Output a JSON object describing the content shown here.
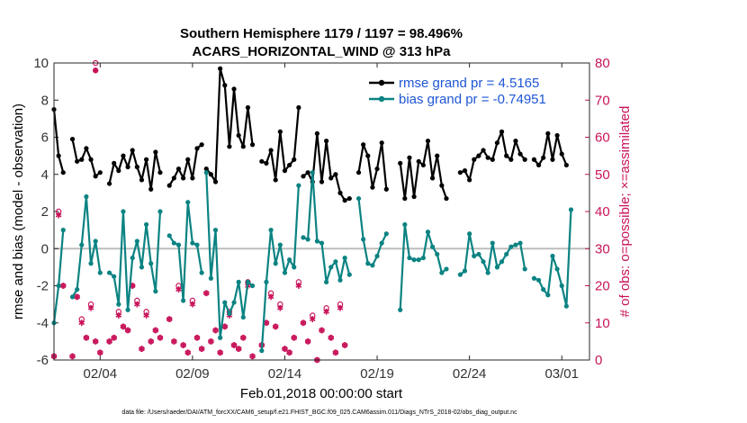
{
  "chart_data": {
    "type": "line",
    "title_line1": "Southern Hemisphere 1179 / 1197 = 98.496%",
    "title_line2": "ACARS_HORIZONTAL_WIND @ 313 hPa",
    "xlabel": "Feb.01,2018 00:00:00 start",
    "ylabel": "rmse and bias (model - observation)",
    "ylabel_right": "# of obs: o=possible; ×=assimilated",
    "footnote": "data file: /Users/raeder/DAI/ATM_forcXX/CAM6_setup/f.e21.FHIST_BGC.f09_025.CAM6assim.011/Diags_NTrS_2018-02/obs_diag_output.nc",
    "xlim": [
      1,
      30
    ],
    "ylim": [
      -6,
      10
    ],
    "ylim_right": [
      0,
      80
    ],
    "x_ticks": [
      3.5,
      8.5,
      13.5,
      18.5,
      23.5,
      28.5
    ],
    "x_tick_labels": [
      "02/04",
      "02/09",
      "02/14",
      "02/19",
      "02/24",
      "03/01"
    ],
    "y_ticks": [
      -6,
      -4,
      -2,
      0,
      2,
      4,
      6,
      8,
      10
    ],
    "y_tick_labels": [
      "-6",
      "-4",
      "-2",
      "0",
      "2",
      "4",
      "6",
      "8",
      "10"
    ],
    "y_right_ticks": [
      0,
      10,
      20,
      30,
      40,
      50,
      60,
      70,
      80
    ],
    "y_right_tick_labels": [
      "0",
      "10",
      "20",
      "30",
      "40",
      "50",
      "60",
      "70",
      "80"
    ],
    "zero_line": 0,
    "legend": [
      {
        "label": "rmse grand pr = 4.5165",
        "color": "#000000"
      },
      {
        "label": "bias grand pr = -0.74951",
        "color": "#0b8382"
      }
    ],
    "series": [
      {
        "name": "rmse",
        "color": "#000000",
        "segments": [
          [
            [
              1.0,
              7.5
            ],
            [
              1.25,
              5.0
            ],
            [
              1.5,
              4.1
            ]
          ],
          [
            [
              2.0,
              5.9
            ],
            [
              2.25,
              4.7
            ],
            [
              2.5,
              4.8
            ],
            [
              2.75,
              5.4
            ],
            [
              3.0,
              4.8
            ],
            [
              3.25,
              3.9
            ],
            [
              3.5,
              4.1
            ]
          ],
          [
            [
              4.0,
              3.5
            ],
            [
              4.25,
              4.6
            ],
            [
              4.5,
              4.2
            ],
            [
              4.75,
              5.0
            ],
            [
              5.0,
              4.4
            ],
            [
              5.25,
              5.3
            ],
            [
              5.5,
              4.4
            ],
            [
              5.75,
              3.7
            ],
            [
              6.0,
              4.8
            ],
            [
              6.25,
              3.2
            ],
            [
              6.5,
              5.2
            ],
            [
              6.75,
              4.1
            ]
          ],
          [
            [
              7.25,
              3.4
            ],
            [
              7.5,
              3.8
            ],
            [
              7.75,
              4.3
            ],
            [
              8.0,
              3.8
            ],
            [
              8.25,
              4.8
            ],
            [
              8.5,
              3.8
            ],
            [
              8.75,
              5.4
            ],
            [
              9.0,
              5.6
            ]
          ],
          [
            [
              9.25,
              4.3
            ],
            [
              9.5,
              4.0
            ],
            [
              9.75,
              3.6
            ],
            [
              10.0,
              9.7
            ],
            [
              10.25,
              8.8
            ],
            [
              10.5,
              5.5
            ],
            [
              10.75,
              8.6
            ],
            [
              11.0,
              6.1
            ],
            [
              11.25,
              5.5
            ],
            [
              11.5,
              7.6
            ],
            [
              11.75,
              5.6
            ]
          ],
          [
            [
              12.25,
              4.7
            ],
            [
              12.5,
              4.6
            ],
            [
              12.75,
              5.3
            ],
            [
              13.0,
              3.7
            ],
            [
              13.25,
              6.3
            ],
            [
              13.5,
              4.2
            ],
            [
              13.75,
              4.5
            ],
            [
              14.0,
              4.8
            ],
            [
              14.25,
              7.6
            ]
          ],
          [
            [
              14.5,
              3.9
            ],
            [
              14.75,
              4.1
            ],
            [
              15.0,
              3.6
            ],
            [
              15.25,
              6.2
            ],
            [
              15.5,
              3.6
            ],
            [
              15.75,
              5.8
            ],
            [
              16.0,
              3.8
            ],
            [
              16.25,
              4.0
            ],
            [
              16.5,
              3.0
            ],
            [
              16.75,
              2.6
            ],
            [
              17.0,
              2.7
            ]
          ],
          [
            [
              17.5,
              4.1
            ],
            [
              17.75,
              5.6
            ],
            [
              18.0,
              5.0
            ],
            [
              18.25,
              3.3
            ],
            [
              18.5,
              4.3
            ],
            [
              18.75,
              5.7
            ],
            [
              19.0,
              3.2
            ]
          ],
          [
            [
              19.75,
              4.6
            ],
            [
              20.0,
              2.7
            ],
            [
              20.25,
              4.9
            ],
            [
              20.5,
              2.8
            ],
            [
              20.75,
              4.7
            ],
            [
              21.0,
              4.5
            ],
            [
              21.25,
              5.8
            ],
            [
              21.5,
              3.8
            ],
            [
              21.75,
              5.0
            ],
            [
              22.0,
              3.4
            ],
            [
              22.25,
              2.7
            ]
          ],
          [
            [
              23.0,
              4.1
            ],
            [
              23.25,
              4.2
            ],
            [
              23.5,
              3.7
            ],
            [
              23.75,
              4.8
            ],
            [
              24.0,
              5.0
            ],
            [
              24.25,
              5.3
            ],
            [
              24.5,
              4.9
            ],
            [
              24.75,
              4.8
            ],
            [
              25.0,
              5.7
            ],
            [
              25.25,
              6.3
            ],
            [
              25.5,
              5.0
            ],
            [
              25.75,
              4.8
            ],
            [
              26.0,
              5.8
            ],
            [
              26.25,
              5.1
            ],
            [
              26.5,
              4.8
            ]
          ],
          [
            [
              27.0,
              4.8
            ],
            [
              27.25,
              4.5
            ],
            [
              27.5,
              4.9
            ],
            [
              27.75,
              6.2
            ],
            [
              28.0,
              4.8
            ],
            [
              28.25,
              6.1
            ],
            [
              28.5,
              5.1
            ],
            [
              28.75,
              4.5
            ]
          ]
        ]
      },
      {
        "name": "bias",
        "color": "#0b8382",
        "segments": [
          [
            [
              1.0,
              -4.0
            ],
            [
              1.25,
              -2.0
            ],
            [
              1.5,
              1.0
            ]
          ],
          [
            [
              2.0,
              -2.6
            ],
            [
              2.25,
              -2.2
            ],
            [
              2.5,
              0.2
            ],
            [
              2.75,
              2.8
            ],
            [
              3.0,
              -0.8
            ],
            [
              3.25,
              0.4
            ],
            [
              3.5,
              -1.3
            ]
          ],
          [
            [
              4.0,
              -1.3
            ],
            [
              4.25,
              -1.5
            ],
            [
              4.5,
              -3.0
            ],
            [
              4.75,
              2.0
            ],
            [
              5.0,
              -3.3
            ],
            [
              5.25,
              -0.5
            ],
            [
              5.5,
              0.4
            ],
            [
              5.75,
              -1.0
            ],
            [
              6.0,
              1.3
            ],
            [
              6.25,
              -0.8
            ],
            [
              6.5,
              -2.3
            ],
            [
              6.75,
              2.0
            ]
          ],
          [
            [
              7.25,
              0.7
            ],
            [
              7.5,
              0.3
            ],
            [
              7.75,
              0.2
            ],
            [
              8.0,
              -2.8
            ],
            [
              8.25,
              2.5
            ],
            [
              8.5,
              0.3
            ],
            [
              8.75,
              0.2
            ],
            [
              9.0,
              -1.3
            ]
          ],
          [
            [
              9.25,
              4.1
            ],
            [
              9.5,
              -1.6
            ],
            [
              9.75,
              1.0
            ],
            [
              10.0,
              -4.8
            ],
            [
              10.25,
              -2.9
            ],
            [
              10.5,
              -3.5
            ],
            [
              10.75,
              -2.9
            ],
            [
              11.0,
              -1.8
            ],
            [
              11.25,
              -3.7
            ],
            [
              11.5,
              -1.8
            ],
            [
              11.75,
              -2.0
            ]
          ],
          [
            [
              12.25,
              -5.5
            ],
            [
              12.5,
              -1.8
            ],
            [
              12.75,
              1.0
            ],
            [
              13.0,
              -0.8
            ],
            [
              13.25,
              0.2
            ],
            [
              13.5,
              -1.3
            ],
            [
              13.75,
              -0.6
            ],
            [
              14.0,
              -1.0
            ],
            [
              14.25,
              3.4
            ]
          ],
          [
            [
              14.5,
              0.6
            ],
            [
              14.75,
              0.5
            ],
            [
              15.0,
              4.1
            ],
            [
              15.25,
              0.4
            ],
            [
              15.5,
              0.3
            ],
            [
              15.75,
              -1.8
            ],
            [
              16.0,
              -1.0
            ],
            [
              16.25,
              -0.7
            ],
            [
              16.5,
              -1.7
            ],
            [
              16.75,
              -0.5
            ],
            [
              17.0,
              -1.4
            ]
          ],
          [
            [
              17.5,
              2.7
            ],
            [
              17.75,
              0.5
            ],
            [
              18.0,
              -0.8
            ],
            [
              18.25,
              -0.9
            ],
            [
              18.5,
              -0.4
            ],
            [
              18.75,
              0.3
            ],
            [
              19.0,
              0.8
            ]
          ],
          [
            [
              19.75,
              -3.3
            ],
            [
              20.0,
              1.3
            ],
            [
              20.25,
              -0.5
            ],
            [
              20.5,
              -0.6
            ],
            [
              20.75,
              -0.6
            ],
            [
              21.0,
              -0.5
            ],
            [
              21.25,
              0.9
            ],
            [
              21.5,
              0.1
            ],
            [
              21.75,
              -0.3
            ],
            [
              22.0,
              -1.3
            ],
            [
              22.25,
              -1.1
            ]
          ],
          [
            [
              23.0,
              -1.4
            ],
            [
              23.25,
              -1.2
            ],
            [
              23.5,
              0.8
            ],
            [
              23.75,
              -0.4
            ],
            [
              24.0,
              -0.3
            ],
            [
              24.25,
              -0.7
            ],
            [
              24.5,
              -1.3
            ],
            [
              24.75,
              0.3
            ],
            [
              25.0,
              -1.0
            ],
            [
              25.25,
              -0.7
            ],
            [
              25.5,
              -0.3
            ],
            [
              25.75,
              0.1
            ],
            [
              26.0,
              0.2
            ],
            [
              26.25,
              0.3
            ],
            [
              26.5,
              -1.1
            ]
          ],
          [
            [
              27.0,
              -1.6
            ],
            [
              27.25,
              -1.7
            ],
            [
              27.5,
              -2.2
            ],
            [
              27.75,
              -2.5
            ],
            [
              28.0,
              -0.4
            ],
            [
              28.25,
              -1.1
            ],
            [
              28.5,
              -2.0
            ],
            [
              28.75,
              -3.1
            ],
            [
              29.0,
              2.1
            ]
          ]
        ]
      }
    ],
    "obs_possible_y": [
      1,
      40,
      20,
      1,
      17,
      11,
      6,
      15,
      5,
      2,
      5,
      6,
      13,
      9,
      8,
      20,
      16,
      3,
      13,
      5,
      8,
      6,
      11,
      5,
      20,
      4,
      2,
      16,
      6,
      3,
      18,
      5,
      8,
      2,
      9,
      13,
      4,
      3,
      6,
      21,
      1,
      4,
      10,
      18,
      9,
      15,
      3,
      2,
      6,
      21,
      10,
      5,
      12,
      0,
      8,
      14,
      6,
      2,
      15,
      4
    ],
    "obs_assim_y": [
      1,
      39,
      20,
      1,
      17,
      10,
      6,
      14,
      5,
      2,
      5,
      6,
      12,
      9,
      8,
      20,
      15,
      3,
      12,
      5,
      8,
      6,
      11,
      5,
      19,
      4,
      2,
      15,
      6,
      3,
      18,
      5,
      8,
      2,
      9,
      12,
      4,
      3,
      6,
      20,
      1,
      4,
      10,
      17,
      9,
      14,
      3,
      2,
      6,
      20,
      10,
      5,
      11,
      0,
      8,
      13,
      6,
      2,
      14,
      4
    ],
    "obs_x": [
      1.0,
      1.25,
      1.5,
      2.0,
      2.25,
      2.5,
      2.75,
      3.0,
      3.25,
      3.5,
      4.0,
      4.25,
      4.5,
      4.75,
      5.0,
      5.25,
      5.5,
      5.75,
      6.0,
      6.25,
      6.5,
      6.75,
      7.25,
      7.5,
      7.75,
      8.0,
      8.25,
      8.5,
      8.75,
      9.0,
      9.25,
      9.5,
      9.75,
      10.0,
      10.25,
      10.5,
      10.75,
      11.0,
      11.25,
      11.5,
      11.75,
      12.25,
      12.5,
      12.75,
      13.0,
      13.25,
      13.5,
      13.75,
      14.0,
      14.25,
      14.5,
      14.75,
      15.0,
      15.25,
      15.5,
      15.75,
      16.0,
      16.25,
      16.5,
      16.75
    ]
  }
}
